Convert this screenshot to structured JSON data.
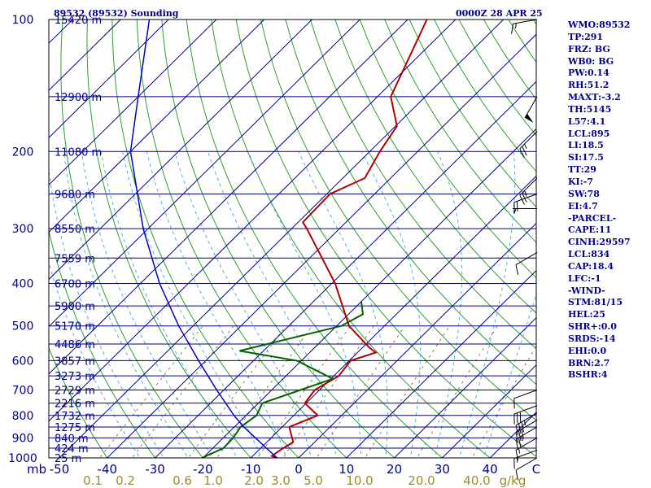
{
  "header": {
    "station": "89532 (89532) Sounding",
    "time": "0000Z 28 APR 25"
  },
  "indices": [
    "WMO:89532",
    "TP:291",
    "FRZ: BG",
    "WB0: BG",
    "PW:0.14",
    "RH:51.2",
    "MAXT:-3.2",
    "TH:5145",
    "L57:4.1",
    "LCL:895",
    "LI:18.5",
    "SI:17.5",
    "TT:29",
    "KI:-7",
    "SW:78",
    "EI:4.7",
    "-PARCEL-",
    "CAPE:11",
    "CINH:29597",
    "LCL:834",
    "CAP:18.4",
    "LFC:-1",
    "-WIND-",
    "STM:81/15",
    "HEL:25",
    "SHR+:0.0",
    "SRDS:-14",
    "EHI:0.0",
    "BRN:2.7",
    "BSHR:4"
  ],
  "colors": {
    "frame": "#000000",
    "isobar": "#00008b",
    "isotherm": "#00008b",
    "dry_adiabat": "#2ca02c",
    "moist_adiabat": "#4fb0e0",
    "mixing_ratio": "#8b7d55",
    "temperature": "#b00000",
    "dewpoint": "#006400",
    "parcel": "#0000c8",
    "text": "#00008b",
    "mixing_label": "#a08c2a",
    "wind": "#000000"
  },
  "chart_data": {
    "type": "line",
    "title": "89532 (89532) Sounding",
    "valid_time": "0000Z 28 APR 25",
    "xlabel": "C",
    "ylabel": "mb",
    "xlim": [
      -50,
      50
    ],
    "ylim": [
      1000,
      100
    ],
    "log_y": true,
    "skewed": true,
    "pressure_ticks": [
      100,
      200,
      300,
      400,
      500,
      600,
      700,
      800,
      900,
      1000
    ],
    "temperature_ticks": [
      -50,
      -40,
      -30,
      -20,
      -10,
      0,
      10,
      20,
      30,
      40
    ],
    "mixing_ratio_labels": [
      "0.1",
      "0.2",
      "0.6",
      "1.0",
      "2.0",
      "3.0",
      "5.0",
      "10.0",
      "20.0",
      "40.0"
    ],
    "mixing_ratio_unit": "g/kg",
    "isobar_heights": [
      {
        "p": 100,
        "label": "15420 m"
      },
      {
        "p": 150,
        "label": "12900 m"
      },
      {
        "p": 200,
        "label": "11080 m"
      },
      {
        "p": 250,
        "label": "9680 m"
      },
      {
        "p": 300,
        "label": "8550 m"
      },
      {
        "p": 350,
        "label": "7559 m"
      },
      {
        "p": 400,
        "label": "6700 m"
      },
      {
        "p": 450,
        "label": "5900 m"
      },
      {
        "p": 500,
        "label": "5170 m"
      },
      {
        "p": 550,
        "label": "4486 m"
      },
      {
        "p": 600,
        "label": "3857 m"
      },
      {
        "p": 650,
        "label": "3273 m"
      },
      {
        "p": 700,
        "label": "2729 m"
      },
      {
        "p": 750,
        "label": "2216 m"
      },
      {
        "p": 800,
        "label": "1732 m"
      },
      {
        "p": 850,
        "label": "1275 m"
      },
      {
        "p": 900,
        "label": "840 m"
      },
      {
        "p": 950,
        "label": "424 m"
      },
      {
        "p": 1000,
        "label": "25 m"
      }
    ],
    "series": [
      {
        "name": "temperature",
        "points": [
          {
            "p": 1000,
            "t": -4.5
          },
          {
            "p": 990,
            "t": -6.0
          },
          {
            "p": 960,
            "t": -5.5
          },
          {
            "p": 920,
            "t": -4.5
          },
          {
            "p": 850,
            "t": -8.5
          },
          {
            "p": 800,
            "t": -5.0
          },
          {
            "p": 750,
            "t": -10.3
          },
          {
            "p": 700,
            "t": -11.0
          },
          {
            "p": 650,
            "t": -9.0
          },
          {
            "p": 600,
            "t": -9.7
          },
          {
            "p": 575,
            "t": -6.2
          },
          {
            "p": 560,
            "t": -8.6
          },
          {
            "p": 500,
            "t": -17.4
          },
          {
            "p": 400,
            "t": -29.3
          },
          {
            "p": 300,
            "t": -46.8
          },
          {
            "p": 290,
            "t": -49.0
          },
          {
            "p": 250,
            "t": -49.3
          },
          {
            "p": 230,
            "t": -45.4
          },
          {
            "p": 200,
            "t": -47.9
          },
          {
            "p": 175,
            "t": -49.7
          },
          {
            "p": 150,
            "t": -57.2
          },
          {
            "p": 100,
            "t": -66.0
          }
        ]
      },
      {
        "name": "dewpoint",
        "points": [
          {
            "p": 1000,
            "t": -20.2
          },
          {
            "p": 990,
            "t": -19.7
          },
          {
            "p": 950,
            "t": -17.8
          },
          {
            "p": 900,
            "t": -17.9
          },
          {
            "p": 850,
            "t": -18.7
          },
          {
            "p": 800,
            "t": -17.8
          },
          {
            "p": 750,
            "t": -19.2
          },
          {
            "p": 700,
            "t": -14.0
          },
          {
            "p": 660,
            "t": -9.6
          },
          {
            "p": 600,
            "t": -21.0
          },
          {
            "p": 570,
            "t": -35.0
          },
          {
            "p": 500,
            "t": -19.0
          },
          {
            "p": 470,
            "t": -17.0
          },
          {
            "p": 440,
            "t": -20.0
          }
        ]
      },
      {
        "name": "parcel",
        "points": [
          {
            "p": 1000,
            "t": -4.5
          },
          {
            "p": 950,
            "t": -8.8
          },
          {
            "p": 900,
            "t": -13.3
          },
          {
            "p": 850,
            "t": -18.0
          },
          {
            "p": 800,
            "t": -22.5
          },
          {
            "p": 700,
            "t": -31.5
          },
          {
            "p": 600,
            "t": -41.5
          },
          {
            "p": 500,
            "t": -53.0
          },
          {
            "p": 400,
            "t": -66.0
          },
          {
            "p": 300,
            "t": -81.0
          },
          {
            "p": 200,
            "t": -100.0
          },
          {
            "p": 150,
            "t": -110.0
          },
          {
            "p": 100,
            "t": -124.0
          }
        ]
      }
    ],
    "wind_barbs": [
      {
        "p": 100,
        "dir": 260,
        "spd": 15
      },
      {
        "p": 150,
        "dir": 210,
        "spd": 50
      },
      {
        "p": 180,
        "dir": 225,
        "spd": 25
      },
      {
        "p": 230,
        "dir": 225,
        "spd": 25
      },
      {
        "p": 250,
        "dir": 250,
        "spd": 20
      },
      {
        "p": 270,
        "dir": 270,
        "spd": 5
      },
      {
        "p": 340,
        "dir": 240,
        "spd": 10
      },
      {
        "p": 700,
        "dir": 250,
        "spd": 10
      },
      {
        "p": 760,
        "dir": 250,
        "spd": 30
      },
      {
        "p": 790,
        "dir": 240,
        "spd": 35
      },
      {
        "p": 820,
        "dir": 240,
        "spd": 30
      },
      {
        "p": 850,
        "dir": 240,
        "spd": 25
      },
      {
        "p": 900,
        "dir": 240,
        "spd": 15
      },
      {
        "p": 960,
        "dir": 250,
        "spd": 15
      },
      {
        "p": 1000,
        "dir": 240,
        "spd": 10
      }
    ]
  }
}
